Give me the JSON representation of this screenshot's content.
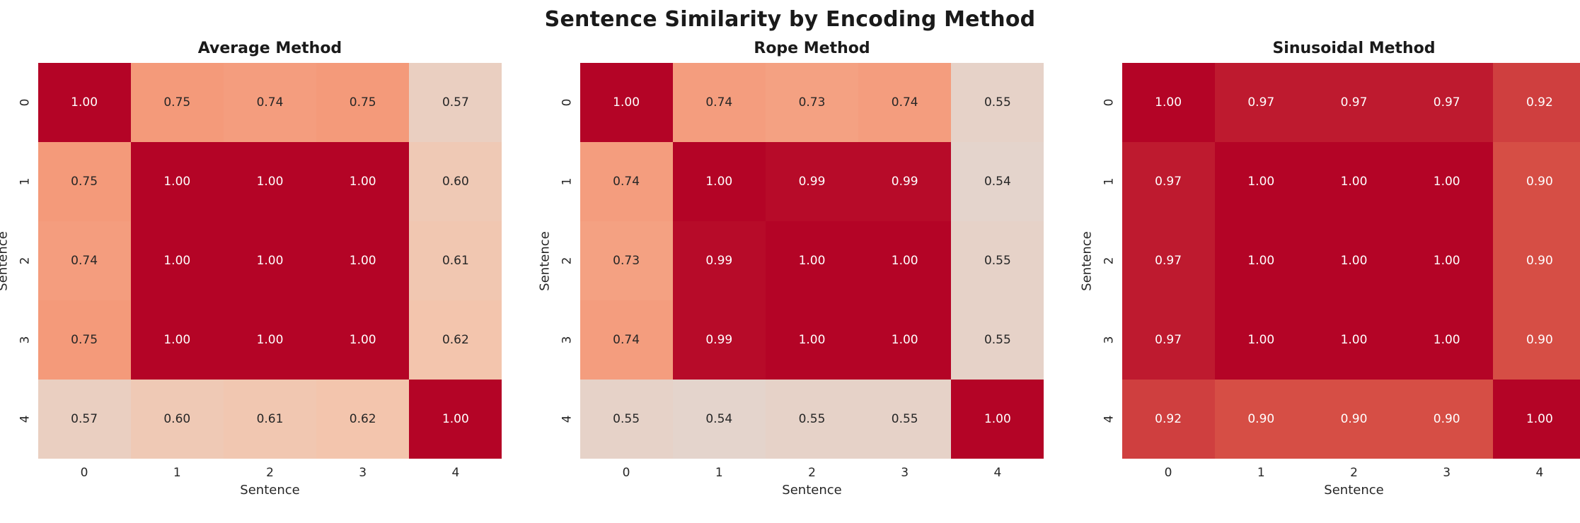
{
  "figure": {
    "title": "Sentence Similarity by Encoding Method",
    "background": "#ffffff"
  },
  "colors": {
    "title_text": "#1a1a1a",
    "axis_text": "#262626",
    "annot_dark": "#262626",
    "annot_light": "#ffffff",
    "max_cell": "#b40426"
  },
  "colormap": {
    "name": "coolwarm",
    "stops": [
      {
        "t": 0.0,
        "color": "#3b4cc0"
      },
      {
        "t": 0.25,
        "color": "#8db0fe"
      },
      {
        "t": 0.5,
        "color": "#dddcdc"
      },
      {
        "t": 0.625,
        "color": "#f4c4ab"
      },
      {
        "t": 0.75,
        "color": "#f49a7a"
      },
      {
        "t": 0.875,
        "color": "#de604d"
      },
      {
        "t": 1.0,
        "color": "#b40426"
      }
    ]
  },
  "chart_data": [
    {
      "type": "heatmap",
      "title": "Average Method",
      "xlabel": "Sentence",
      "ylabel": "Sentence",
      "x_ticks": [
        "0",
        "1",
        "2",
        "3",
        "4"
      ],
      "y_ticks": [
        "0",
        "1",
        "2",
        "3",
        "4"
      ],
      "vmin": 0,
      "vmax": 1,
      "annot_format": "0.00",
      "values": [
        [
          1.0,
          0.75,
          0.74,
          0.75,
          0.57
        ],
        [
          0.75,
          1.0,
          1.0,
          1.0,
          0.6
        ],
        [
          0.74,
          1.0,
          1.0,
          1.0,
          0.61
        ],
        [
          0.75,
          1.0,
          1.0,
          1.0,
          0.62
        ],
        [
          0.57,
          0.6,
          0.61,
          0.62,
          1.0
        ]
      ]
    },
    {
      "type": "heatmap",
      "title": "Rope Method",
      "xlabel": "Sentence",
      "ylabel": "Sentence",
      "x_ticks": [
        "0",
        "1",
        "2",
        "3",
        "4"
      ],
      "y_ticks": [
        "0",
        "1",
        "2",
        "3",
        "4"
      ],
      "vmin": 0,
      "vmax": 1,
      "annot_format": "0.00",
      "values": [
        [
          1.0,
          0.74,
          0.73,
          0.74,
          0.55
        ],
        [
          0.74,
          1.0,
          0.99,
          0.99,
          0.54
        ],
        [
          0.73,
          0.99,
          1.0,
          1.0,
          0.55
        ],
        [
          0.74,
          0.99,
          1.0,
          1.0,
          0.55
        ],
        [
          0.55,
          0.54,
          0.55,
          0.55,
          1.0
        ]
      ]
    },
    {
      "type": "heatmap",
      "title": "Sinusoidal Method",
      "xlabel": "Sentence",
      "ylabel": "Sentence",
      "x_ticks": [
        "0",
        "1",
        "2",
        "3",
        "4"
      ],
      "y_ticks": [
        "0",
        "1",
        "2",
        "3",
        "4"
      ],
      "vmin": 0,
      "vmax": 1,
      "annot_format": "0.00",
      "values": [
        [
          1.0,
          0.97,
          0.97,
          0.97,
          0.92
        ],
        [
          0.97,
          1.0,
          1.0,
          1.0,
          0.9
        ],
        [
          0.97,
          1.0,
          1.0,
          1.0,
          0.9
        ],
        [
          0.97,
          1.0,
          1.0,
          1.0,
          0.9
        ],
        [
          0.92,
          0.9,
          0.9,
          0.9,
          1.0
        ]
      ]
    }
  ]
}
